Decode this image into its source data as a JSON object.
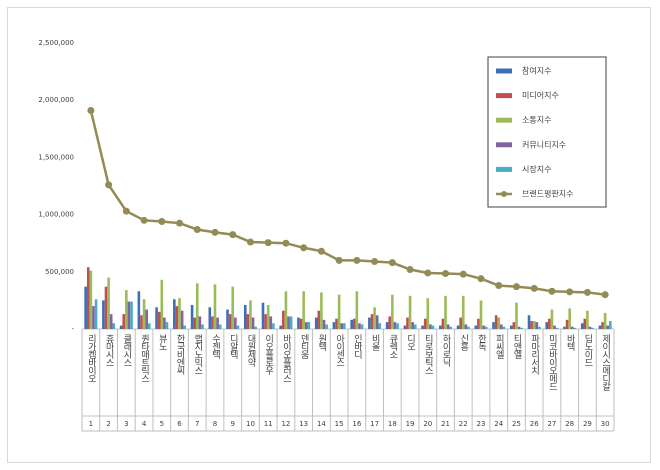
{
  "chart_data": {
    "type": "bar",
    "categories": [
      "리가켐바이오",
      "휴마시스",
      "클래시스",
      "퀀타매트릭스",
      "뷰노",
      "한국비엔씨",
      "랩지노믹스",
      "수젠텍",
      "디알텍",
      "대원제약",
      "이오플로우",
      "바이오플러스",
      "덴티움",
      "원텍",
      "아이센스",
      "인바디",
      "비올",
      "큐렉소",
      "디오",
      "티로보틱스",
      "하이로닉",
      "신흥",
      "한독",
      "피씨엘",
      "티앤엘",
      "파마리서치",
      "미코바이오메드",
      "바텍",
      "딥노이드",
      "제이시스메디칼"
    ],
    "ranks": [
      1,
      2,
      3,
      4,
      5,
      6,
      7,
      8,
      9,
      10,
      11,
      12,
      13,
      14,
      15,
      16,
      17,
      18,
      19,
      20,
      21,
      22,
      23,
      24,
      25,
      26,
      27,
      28,
      29,
      30
    ],
    "ylim": [
      0,
      2500000
    ],
    "yticks": [
      {
        "value": 0,
        "label": "-"
      },
      {
        "value": 500000,
        "label": "500,000"
      },
      {
        "value": 1000000,
        "label": "1,000,000"
      },
      {
        "value": 1500000,
        "label": "1,500,000"
      },
      {
        "value": 2000000,
        "label": "2,000,000"
      },
      {
        "value": 2500000,
        "label": "2,500,000"
      }
    ],
    "legend": "upper right",
    "series": [
      {
        "name": "참여지수",
        "color": "#3c6fb5",
        "values": [
          370000,
          250000,
          30000,
          330000,
          190000,
          260000,
          210000,
          190000,
          170000,
          210000,
          230000,
          30000,
          100000,
          100000,
          60000,
          80000,
          100000,
          60000,
          30000,
          30000,
          30000,
          30000,
          30000,
          60000,
          30000,
          120000,
          60000,
          20000,
          50000,
          30000
        ]
      },
      {
        "name": "미디어지수",
        "color": "#c0504d",
        "values": [
          540000,
          370000,
          130000,
          120000,
          150000,
          200000,
          100000,
          110000,
          130000,
          130000,
          130000,
          160000,
          90000,
          160000,
          90000,
          90000,
          130000,
          110000,
          100000,
          90000,
          90000,
          100000,
          90000,
          120000,
          60000,
          70000,
          90000,
          80000,
          90000,
          60000
        ]
      },
      {
        "name": "소통지수",
        "color": "#9bbb59",
        "values": [
          510000,
          450000,
          340000,
          260000,
          430000,
          270000,
          400000,
          390000,
          370000,
          250000,
          210000,
          330000,
          330000,
          320000,
          300000,
          330000,
          190000,
          300000,
          290000,
          270000,
          290000,
          290000,
          250000,
          100000,
          230000,
          70000,
          170000,
          180000,
          160000,
          140000
        ]
      },
      {
        "name": "커뮤니티지수",
        "color": "#8064a2",
        "values": [
          200000,
          130000,
          240000,
          170000,
          100000,
          160000,
          110000,
          100000,
          100000,
          100000,
          110000,
          110000,
          60000,
          80000,
          50000,
          50000,
          120000,
          60000,
          60000,
          40000,
          40000,
          40000,
          30000,
          40000,
          20000,
          60000,
          30000,
          20000,
          20000,
          30000
        ]
      },
      {
        "name": "시장지수",
        "color": "#4bacc6",
        "values": [
          260000,
          50000,
          240000,
          50000,
          60000,
          30000,
          40000,
          40000,
          30000,
          20000,
          50000,
          110000,
          60000,
          40000,
          50000,
          40000,
          50000,
          50000,
          40000,
          30000,
          20000,
          20000,
          20000,
          20000,
          10000,
          20000,
          10000,
          10000,
          10000,
          70000
        ]
      },
      {
        "name": "브랜드평판지수",
        "type": "line",
        "color": "#948a54",
        "values": [
          1910000,
          1260000,
          1030000,
          950000,
          940000,
          925000,
          870000,
          845000,
          825000,
          760000,
          755000,
          750000,
          710000,
          680000,
          600000,
          600000,
          590000,
          580000,
          520000,
          490000,
          485000,
          480000,
          440000,
          380000,
          370000,
          355000,
          330000,
          325000,
          320000,
          300000
        ]
      }
    ]
  }
}
